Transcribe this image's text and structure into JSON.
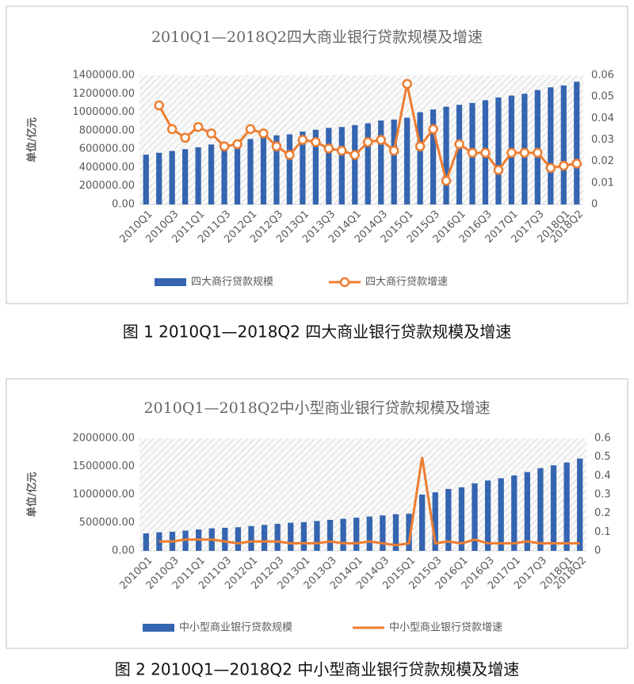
{
  "chart_data": [
    {
      "type": "combo",
      "title": "2010Q1—2018Q2四大商业银行贷款规模及增速",
      "caption": "图 1  2010Q1—2018Q2 四大商业银行贷款规模及增速",
      "y_label": "单位/亿元",
      "categories": [
        "2010Q1",
        null,
        "2010Q3",
        null,
        "2011Q1",
        null,
        "2011Q3",
        null,
        "2012Q1",
        null,
        "2012Q3",
        null,
        "2013Q1",
        null,
        "2013Q3",
        null,
        "2014Q1",
        null,
        "2014Q3",
        null,
        "2015Q1",
        null,
        "2015Q3",
        null,
        "2016Q1",
        null,
        "2016Q3",
        null,
        "2017Q1",
        null,
        "2017Q3",
        null,
        "2018Q1",
        "2018Q2"
      ],
      "series": [
        {
          "name": "四大商行贷款规模",
          "type": "bar",
          "color": "#3565b0",
          "axis": "y",
          "values": [
            540000,
            560000,
            580000,
            600000,
            620000,
            650000,
            670000,
            690000,
            710000,
            730000,
            750000,
            760000,
            790000,
            810000,
            830000,
            840000,
            860000,
            880000,
            910000,
            920000,
            940000,
            1000000,
            1030000,
            1060000,
            1080000,
            1100000,
            1130000,
            1160000,
            1180000,
            1200000,
            1240000,
            1270000,
            1290000,
            1330000
          ]
        },
        {
          "name": "四大商行贷款增速",
          "type": "line",
          "color": "#ed7d31",
          "axis": "y2",
          "markers": true,
          "values": [
            null,
            0.046,
            0.035,
            0.031,
            0.036,
            0.033,
            0.027,
            0.028,
            0.035,
            0.033,
            0.027,
            0.023,
            0.03,
            0.029,
            0.026,
            0.025,
            0.023,
            0.029,
            0.03,
            0.025,
            0.056,
            0.027,
            0.035,
            0.011,
            0.028,
            0.024,
            0.024,
            0.016,
            0.024,
            0.024,
            0.024,
            0.017,
            0.018,
            0.019
          ]
        }
      ],
      "ylim": [
        0,
        1400000
      ],
      "yticks": [
        {
          "value": 0,
          "label": "0.00"
        },
        {
          "value": 200000,
          "label": "200000.00"
        },
        {
          "value": 400000,
          "label": "400000.00"
        },
        {
          "value": 600000,
          "label": "600000.00"
        },
        {
          "value": 800000,
          "label": "800000.00"
        },
        {
          "value": 1000000,
          "label": "1000000.00"
        },
        {
          "value": 1200000,
          "label": "1200000.00"
        },
        {
          "value": 1400000,
          "label": "1400000.00"
        }
      ],
      "y2lim": [
        0,
        0.06
      ],
      "y2ticks": [
        0,
        0.01,
        0.02,
        0.03,
        0.04,
        0.05,
        0.06
      ],
      "legend": "bottom"
    },
    {
      "type": "combo",
      "title": "2010Q1—2018Q2中小型商业银行贷款规模及增速",
      "caption": "图 2  2010Q1—2018Q2 中小型商业银行贷款规模及增速",
      "y_label": "单位/亿元",
      "categories": [
        "2010Q1",
        null,
        "2010Q3",
        null,
        "2011Q1",
        null,
        "2011Q3",
        null,
        "2012Q1",
        null,
        "2012Q3",
        null,
        "2013Q1",
        null,
        "2013Q3",
        null,
        "2014Q1",
        null,
        "2014Q3",
        null,
        "2015Q1",
        null,
        "2015Q3",
        null,
        "2016Q1",
        null,
        "2016Q3",
        null,
        "2017Q1",
        null,
        "2017Q3",
        null,
        "2018Q1",
        "2018Q2"
      ],
      "series": [
        {
          "name": "中小型商业银行贷款规模",
          "type": "bar",
          "color": "#3565b0",
          "axis": "y",
          "values": [
            310000,
            330000,
            340000,
            360000,
            380000,
            400000,
            410000,
            420000,
            440000,
            460000,
            480000,
            500000,
            510000,
            530000,
            550000,
            570000,
            590000,
            610000,
            630000,
            650000,
            660000,
            1000000,
            1040000,
            1100000,
            1130000,
            1200000,
            1250000,
            1290000,
            1340000,
            1400000,
            1470000,
            1520000,
            1570000,
            1640000
          ]
        },
        {
          "name": "中小型商业银行贷款增速",
          "type": "line",
          "color": "#ed7d31",
          "axis": "y2",
          "markers": false,
          "values": [
            null,
            0.05,
            0.05,
            0.06,
            0.06,
            0.06,
            0.05,
            0.04,
            0.05,
            0.05,
            0.05,
            0.04,
            0.04,
            0.04,
            0.05,
            0.04,
            0.04,
            0.05,
            0.04,
            0.03,
            0.04,
            0.5,
            0.04,
            0.05,
            0.04,
            0.06,
            0.04,
            0.04,
            0.04,
            0.05,
            0.04,
            0.04,
            0.04,
            0.04
          ]
        }
      ],
      "ylim": [
        0,
        2000000
      ],
      "yticks": [
        {
          "value": 0,
          "label": "0.00"
        },
        {
          "value": 500000,
          "label": "500000.00"
        },
        {
          "value": 1000000,
          "label": "1000000.00"
        },
        {
          "value": 1500000,
          "label": "1500000.00"
        },
        {
          "value": 2000000,
          "label": "2000000.00"
        }
      ],
      "y2lim": [
        0,
        0.6
      ],
      "y2ticks": [
        0,
        0.1,
        0.2,
        0.3,
        0.4,
        0.5,
        0.6
      ],
      "legend": "bottom"
    }
  ]
}
